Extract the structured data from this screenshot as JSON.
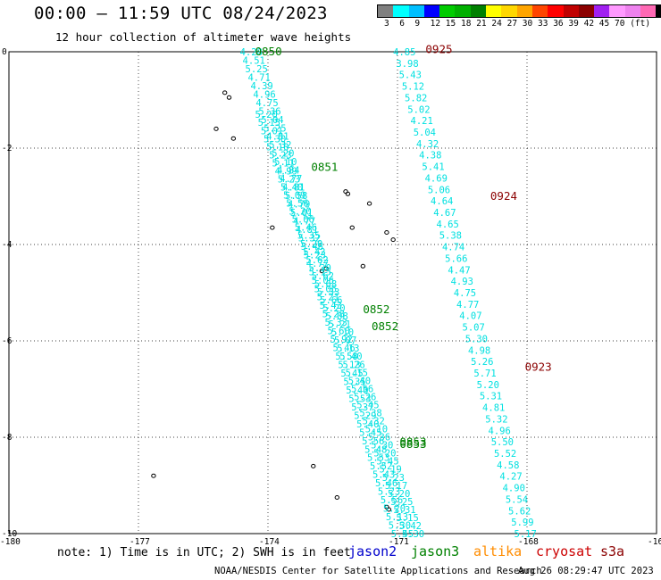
{
  "title": "00:00 – 11:59 UTC 08/24/2023",
  "subtitle": "12 hour collection of altimeter wave heights",
  "colorbar": {
    "colors": [
      "#7f7f7f",
      "#00ffff",
      "#00bfff",
      "#0000ff",
      "#00cc00",
      "#00b000",
      "#008000",
      "#ffff00",
      "#ffd700",
      "#ffa500",
      "#ff4500",
      "#ff0000",
      "#c00000",
      "#8b0000",
      "#a020f0",
      "#ff99ff",
      "#ee82ee",
      "#ff69b4",
      "#000000"
    ],
    "labels": [
      "3",
      "6",
      "9",
      "12",
      "15",
      "18",
      "21",
      "24",
      "27",
      "30",
      "33",
      "36",
      "39",
      "42",
      "45",
      "70",
      "(ft)"
    ]
  },
  "axes": {
    "x_ticks": [
      "-180",
      "-177",
      "-174",
      "-171",
      "-168",
      "-16"
    ],
    "y_ticks": [
      "0",
      "-2",
      "-4",
      "-6",
      "-8",
      "-10"
    ],
    "xlim": [
      -180,
      -165
    ],
    "ylim": [
      -10,
      0
    ]
  },
  "passes": [
    {
      "time": "0850",
      "color": "#008000",
      "label_lon": -174.3,
      "label_lat": 0.0
    },
    {
      "time": "0851",
      "color": "#008000",
      "label_lon": -173.0,
      "label_lat": -2.4
    },
    {
      "time": "0852",
      "color": "#008000",
      "label_lon": -171.8,
      "label_lat": -5.35
    },
    {
      "time": "0852",
      "color": "#008000",
      "label_lon": -171.6,
      "label_lat": -5.7
    },
    {
      "time": "0853",
      "color": "#008000",
      "label_lon": -170.95,
      "label_lat": -8.1
    },
    {
      "time": "0853",
      "color": "#008000",
      "label_lon": -170.95,
      "label_lat": -8.15
    },
    {
      "time": "0925",
      "color": "#8b0000",
      "label_lon": -170.35,
      "label_lat": 0.05
    },
    {
      "time": "0924",
      "color": "#8b0000",
      "label_lon": -168.85,
      "label_lat": -3.0
    },
    {
      "time": "0923",
      "color": "#8b0000",
      "label_lon": -168.05,
      "label_lat": -6.55
    }
  ],
  "tracks": [
    {
      "satellite": "jason3",
      "color": "#00e0e0",
      "start": [
        -174.65,
        0.0
      ],
      "end": [
        -171.15,
        -10.0
      ],
      "values": [
        "4.28",
        "4.51",
        "5.25",
        "4.71",
        "4.39",
        "4.96",
        "4.75",
        "5.36",
        "5.04",
        "5.25",
        "4.81",
        "5.32",
        "5.20",
        "5.10",
        "4.84",
        "4.77",
        "4.81",
        "5.58",
        "4.79",
        "5.01",
        "4.77",
        "4.81",
        "5.32",
        "5.48",
        "5.23",
        "4.77",
        "5.15",
        "5.06",
        "5.06",
        "5.21",
        "5.43",
        "5.28",
        "5.33",
        "5.60",
        "5.92",
        "5.46",
        "5.58",
        "5.13",
        "5.45",
        "5.35",
        "5.40",
        "5.53",
        "5.37",
        "5.29",
        "5.40",
        "5.45",
        "5.56",
        "5.48",
        "5.53",
        "5.52",
        "5.43",
        "5.46",
        "5.23",
        "5.56",
        "5.20",
        "5.13",
        "5.30",
        "5.45"
      ]
    },
    {
      "satellite": "jason3",
      "color": "#00e0e0",
      "start": [
        -174.3,
        -1.3
      ],
      "end": [
        -170.9,
        -10.0
      ],
      "values": [
        "5.20",
        "5.15",
        "5.01",
        "5.30",
        "5.10",
        "5.23",
        "5.11",
        "4.99",
        "5.23",
        "5.40",
        "5.09",
        "5.56",
        "5.20",
        "5.06",
        "5.46",
        "5.35",
        "5.20",
        "5.42",
        "5.62",
        "5.30",
        "5.62",
        "5.68",
        "5.33",
        "5.66",
        "5.20",
        "5.08",
        "5.21",
        "5.10",
        "5.07",
        "5.13",
        "5.40",
        "5.26",
        "5.15",
        "5.40",
        "5.56",
        "5.26",
        "5.45",
        "5.38",
        "5.32",
        "5.10",
        "5.36",
        "5.30",
        "5.20",
        "5.45",
        "5.19",
        "5.23",
        "5.17",
        "5.20",
        "5.25",
        "5.31",
        "5.15",
        "5.42",
        "5.30"
      ]
    },
    {
      "satellite": "cryosat",
      "color": "#00e0e0",
      "start": [
        -171.1,
        0.0
      ],
      "end": [
        -168.3,
        -10.0
      ],
      "values": [
        "4.85",
        "3.98",
        "5.43",
        "5.12",
        "5.82",
        "5.02",
        "4.21",
        "5.04",
        "4.32",
        "4.38",
        "5.41",
        "4.69",
        "5.06",
        "4.64",
        "4.67",
        "4.65",
        "5.38",
        "4.74",
        "5.66",
        "4.47",
        "4.93",
        "4.75",
        "4.77",
        "4.07",
        "5.07",
        "5.30",
        "4.98",
        "5.26",
        "5.71",
        "5.20",
        "5.31",
        "4.81",
        "5.32",
        "4.96",
        "5.50",
        "5.52",
        "4.58",
        "4.27",
        "4.90",
        "5.54",
        "5.62",
        "5.99",
        "5.17"
      ]
    }
  ],
  "islands": [
    {
      "lon": -175.0,
      "lat": -0.85
    },
    {
      "lon": -174.9,
      "lat": -0.95
    },
    {
      "lon": -175.2,
      "lat": -1.6
    },
    {
      "lon": -174.8,
      "lat": -1.8
    },
    {
      "lon": -173.9,
      "lat": -3.65
    },
    {
      "lon": -172.2,
      "lat": -2.9
    },
    {
      "lon": -172.15,
      "lat": -2.95
    },
    {
      "lon": -171.65,
      "lat": -3.15
    },
    {
      "lon": -172.05,
      "lat": -3.65
    },
    {
      "lon": -171.25,
      "lat": -3.75
    },
    {
      "lon": -171.1,
      "lat": -3.9
    },
    {
      "lon": -172.65,
      "lat": -4.5
    },
    {
      "lon": -172.75,
      "lat": -4.55
    },
    {
      "lon": -171.8,
      "lat": -4.45
    },
    {
      "lon": -172.95,
      "lat": -8.6
    },
    {
      "lon": -176.65,
      "lat": -8.8
    },
    {
      "lon": -172.4,
      "lat": -9.25
    },
    {
      "lon": -171.25,
      "lat": -9.45
    },
    {
      "lon": -171.2,
      "lat": -9.5
    }
  ],
  "note": "note: 1) Time is in UTC; 2) SWH is in feet",
  "satellites": [
    {
      "name": "jason2",
      "color": "#0000cc"
    },
    {
      "name": "jason3",
      "color": "#008000"
    },
    {
      "name": "altika",
      "color": "#ff8c00"
    },
    {
      "name": "cryosat",
      "color": "#cc0000"
    },
    {
      "name": "s3a",
      "color": "#8b0000"
    }
  ],
  "footer": "NOAA/NESDIS Center for Satellite Applications and Research",
  "timestamp": "Aug 26 08:29:47 UTC 2023"
}
